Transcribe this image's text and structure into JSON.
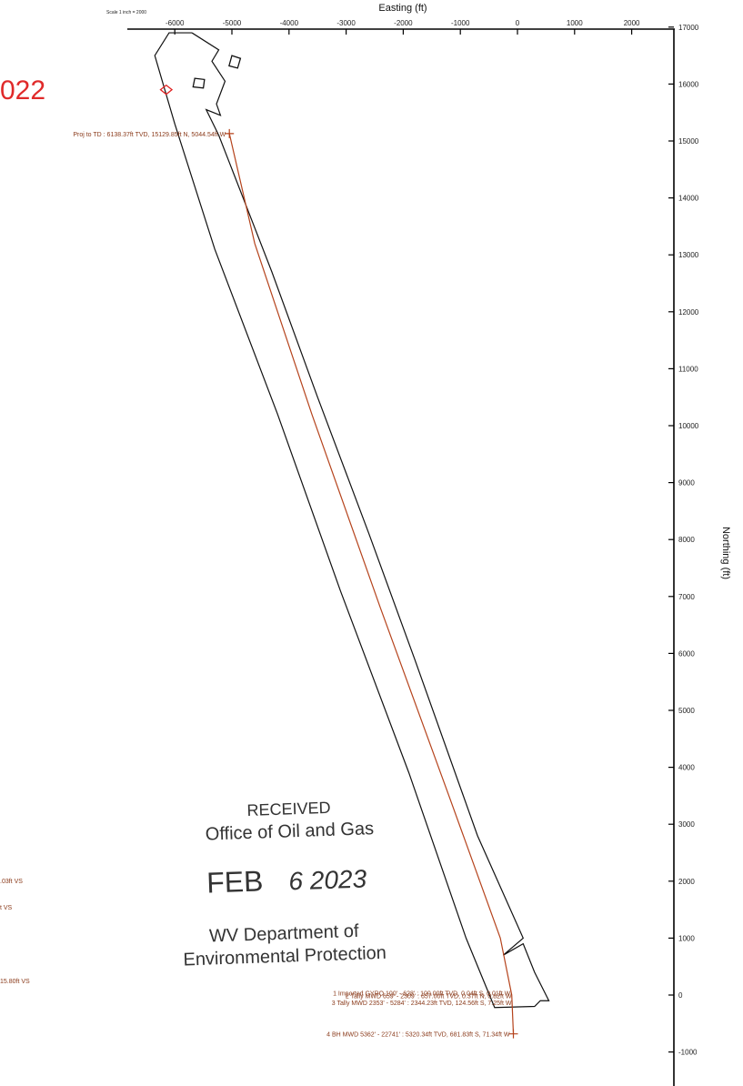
{
  "chart_data": {
    "type": "line",
    "scale_note": "Scale 1 inch = 2000",
    "xlabel": "Easting (ft)",
    "ylabel": "Northing (ft)",
    "xlim": [
      -6600,
      2600
    ],
    "ylim": [
      -1400,
      17000
    ],
    "x_ticks": [
      -6000,
      -5000,
      -4000,
      -3000,
      -2000,
      -1000,
      0,
      1000,
      2000
    ],
    "y_ticks": [
      17000,
      16000,
      15000,
      14000,
      13000,
      12000,
      11000,
      10000,
      9000,
      8000,
      7000,
      6000,
      5000,
      4000,
      3000,
      2000,
      1000,
      0,
      -1000
    ],
    "x_tick_labels": [
      "-6000",
      "-5000",
      "-4000",
      "-3000",
      "-2000",
      "-1000",
      "0",
      "1000",
      "2000"
    ],
    "y_tick_labels": [
      "17000",
      "16000",
      "15000",
      "14000",
      "13000",
      "12000",
      "11000",
      "10000",
      "9000",
      "8000",
      "7000",
      "6000",
      "5000",
      "4000",
      "3000",
      "2000",
      "1000",
      "0",
      "-1000"
    ],
    "series": [
      {
        "color": "#b5431c",
        "x": [
          -71.34,
          -100,
          -300,
          -1200,
          -2400,
          -3600,
          -4600,
          -5044.54
        ],
        "y": [
          -681.83,
          0,
          1000,
          3500,
          6800,
          10200,
          13200,
          15129.85
        ]
      }
    ],
    "unit_outline": {
      "color": "#111111",
      "x": [
        -5700,
        -5230,
        -5350,
        -5120,
        -5270,
        -5200,
        -5450,
        -5230,
        -4300,
        -3500,
        -2600,
        -1800,
        -700,
        100,
        -250,
        100,
        300,
        500,
        550,
        400,
        300,
        -400,
        -900,
        -1900,
        -3100,
        -4200,
        -5300,
        -6000,
        -6350,
        -6100,
        -5900,
        -5700
      ],
      "y": [
        16900,
        16600,
        16400,
        16050,
        15650,
        15450,
        15550,
        15100,
        12700,
        10500,
        8100,
        5900,
        2800,
        1000,
        700,
        900,
        400,
        0,
        -100,
        -100,
        -200,
        -220,
        1000,
        3900,
        7100,
        10200,
        13100,
        15300,
        16500,
        16900,
        16900,
        16900
      ]
    },
    "lease_boxes": [
      {
        "color": "#111111",
        "x": [
          -5000,
          -4850,
          -4900,
          -5050
        ],
        "y": [
          16500,
          16450,
          16280,
          16320
        ]
      },
      {
        "color": "#111111",
        "x": [
          -5650,
          -5480,
          -5500,
          -5680
        ],
        "y": [
          16100,
          16080,
          15930,
          15950
        ]
      },
      {
        "color": "#e02020",
        "x": [
          -6250,
          -6150,
          -6050,
          -6150
        ],
        "y": [
          15900,
          15980,
          15900,
          15820
        ]
      }
    ],
    "annotations": [
      {
        "text": "Proj to TD : 6138.37ft TVD, 15129.85ft N, 5044.54ft W",
        "x": -5044.54,
        "y": 15129.85,
        "anchor": "end"
      },
      {
        "text": "1 Imported GYRO 100' - 628' : 100.00ft TVD, 0.04ft S, 0.01ft W",
        "x": -60,
        "y": 40,
        "anchor": "end"
      },
      {
        "text": "2 Tally MWD 659' - 2309' : 657.00ft TVD, 0.37ft N, 0.82ft W",
        "x": -40,
        "y": -10,
        "anchor": "end"
      },
      {
        "text": "3 Tally MWD 2353' - 5284' : 2344.23ft TVD, 124.56ft S, 7.25ft W",
        "x": -40,
        "y": -124.56,
        "anchor": "end"
      },
      {
        "text": "4 BH MWD 5362' - 22741' : 5320.34ft TVD, 681.83ft S, 71.34ft W",
        "x": -71.34,
        "y": -681.83,
        "anchor": "end"
      }
    ]
  },
  "left_edge_labels": {
    "year_fragment": "022",
    "vs_1": ".03ft VS",
    "vs_2": "t VS",
    "vs_3": "15.80ft VS"
  },
  "stamp": {
    "line1": "RECEIVED",
    "line2": "Office of Oil and Gas",
    "date_month": "FEB",
    "date_day_year": "6 2023",
    "line4": "WV Department of",
    "line5": "Environmental Protection"
  }
}
